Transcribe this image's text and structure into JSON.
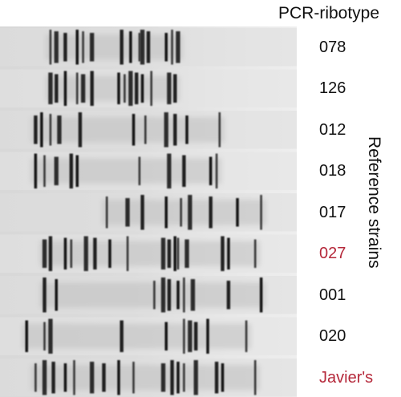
{
  "header": {
    "title": "PCR-ribotype"
  },
  "side_label": "Reference strains",
  "colors": {
    "text": "#111111",
    "highlight": "#b5283a",
    "band": "#111111",
    "gel_light": "#e9e9e9",
    "gel_mid": "#d4d4d4"
  },
  "lanes": [
    {
      "label": "078",
      "highlight": false,
      "bands": [
        0.17,
        0.19,
        0.22,
        0.26,
        0.28,
        0.31,
        0.41,
        0.44,
        0.47,
        0.48,
        0.5,
        0.56,
        0.58,
        0.6
      ]
    },
    {
      "label": "126",
      "highlight": false,
      "bands": [
        0.17,
        0.19,
        0.22,
        0.26,
        0.28,
        0.31,
        0.4,
        0.42,
        0.44,
        0.46,
        0.48,
        0.51,
        0.57,
        0.59
      ]
    },
    {
      "label": "012",
      "highlight": false,
      "bands": [
        0.12,
        0.14,
        0.17,
        0.2,
        0.27,
        0.45,
        0.49,
        0.56,
        0.59,
        0.63,
        0.74
      ]
    },
    {
      "label": "018",
      "highlight": false,
      "bands": [
        0.12,
        0.15,
        0.19,
        0.24,
        0.26,
        0.47,
        0.57,
        0.62,
        0.71,
        0.73
      ]
    },
    {
      "label": "017",
      "highlight": false,
      "bands": [
        0.36,
        0.43,
        0.48,
        0.56,
        0.61,
        0.64,
        0.71,
        0.8,
        0.88
      ]
    },
    {
      "label": "027",
      "highlight": true,
      "bands": [
        0.15,
        0.17,
        0.22,
        0.24,
        0.29,
        0.32,
        0.37,
        0.43,
        0.55,
        0.57,
        0.59,
        0.6,
        0.63,
        0.75,
        0.77,
        0.86
      ]
    },
    {
      "label": "001",
      "highlight": false,
      "bands": [
        0.15,
        0.19,
        0.52,
        0.55,
        0.57,
        0.6,
        0.62,
        0.65,
        0.77,
        0.88
      ]
    },
    {
      "label": "020",
      "highlight": false,
      "bands": [
        0.09,
        0.15,
        0.17,
        0.41,
        0.56,
        0.62,
        0.64,
        0.66,
        0.7,
        0.83
      ]
    },
    {
      "label": "Javier's",
      "highlight": true,
      "bands": [
        0.12,
        0.15,
        0.18,
        0.22,
        0.25,
        0.31,
        0.35,
        0.4,
        0.45,
        0.55,
        0.58,
        0.6,
        0.62,
        0.66,
        0.73,
        0.75,
        0.86
      ]
    }
  ]
}
